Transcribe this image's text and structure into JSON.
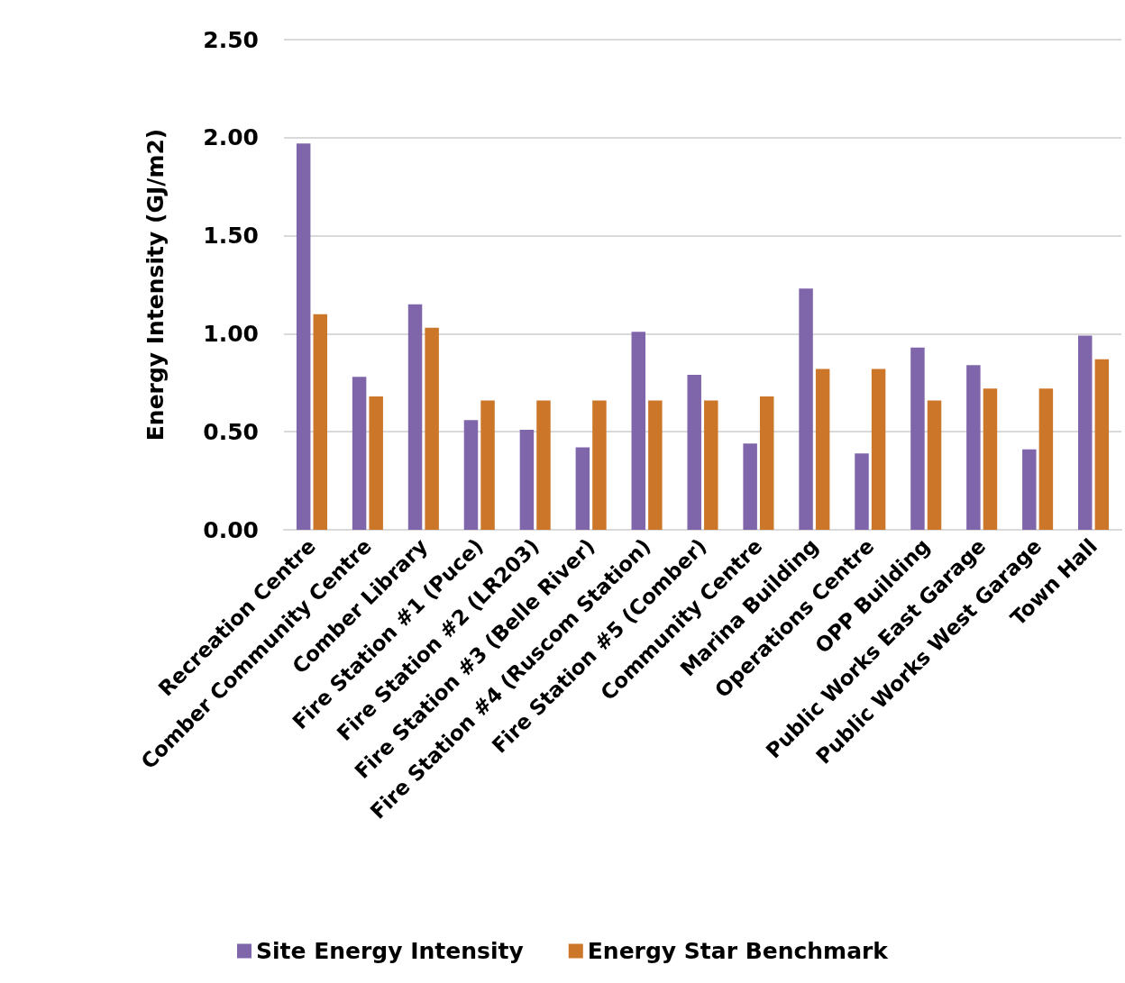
{
  "chart_data": {
    "type": "bar",
    "ylabel": "Energy Intensity (GJ/m2)",
    "categories": [
      "Recreation Centre",
      "Comber Community Centre",
      "Comber Library",
      "Fire Station #1 (Puce)",
      "Fire Station #2 (LR203)",
      "Fire Station #3 (Belle River)",
      "Fire Station #4 (Ruscom Station)",
      "Fire Station #5 (Comber)",
      "Community Centre",
      "Marina Building",
      "Operations Centre",
      "OPP Building",
      "Public Works East Garage",
      "Public Works West Garage",
      "Town Hall"
    ],
    "series": [
      {
        "name": "Site Energy Intensity",
        "color": "#7f66ab",
        "values": [
          1.97,
          0.78,
          1.15,
          0.56,
          0.51,
          0.42,
          1.01,
          0.79,
          0.44,
          1.23,
          0.39,
          0.93,
          0.84,
          0.41,
          0.99
        ]
      },
      {
        "name": "Energy Star Benchmark",
        "color": "#cc7629",
        "values": [
          1.1,
          0.68,
          1.03,
          0.66,
          0.66,
          0.66,
          0.66,
          0.66,
          0.68,
          0.82,
          0.82,
          0.66,
          0.72,
          0.72,
          0.87
        ]
      }
    ],
    "ylim": [
      0,
      2.5
    ],
    "yticks": [
      {
        "value": 0,
        "label": "0.00"
      },
      {
        "value": 0.5,
        "label": "0.50"
      },
      {
        "value": 1,
        "label": "1.00"
      },
      {
        "value": 1.5,
        "label": "1.50"
      },
      {
        "value": 2,
        "label": "2.00"
      },
      {
        "value": 2.5,
        "label": "2.50"
      }
    ],
    "grid": "y",
    "legend": "bottom"
  }
}
